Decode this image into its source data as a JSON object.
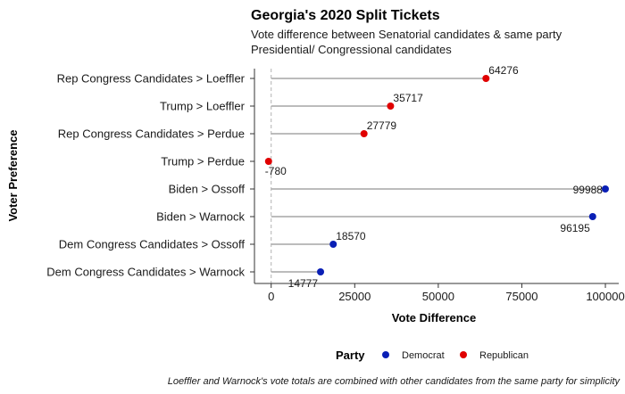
{
  "chart_data": {
    "type": "lollipop",
    "title": "Georgia's 2020 Split Tickets",
    "subtitle_lines": [
      "Vote difference between Senatorial candidates & same party",
      "Presidential/ Congressional candidates"
    ],
    "xlabel": "Vote Difference",
    "ylabel": "Voter Preference",
    "xlim": [
      -5000,
      104000
    ],
    "x_ticks": [
      0,
      25000,
      50000,
      75000,
      100000
    ],
    "x_tick_labels": [
      "0",
      "25000",
      "50000",
      "75000",
      "100000"
    ],
    "grid": false,
    "zero_reference_line": "dashed",
    "legend": {
      "title": "Party",
      "placement": "bottom",
      "items": [
        {
          "name": "Democrat",
          "color": "#0a1fb5"
        },
        {
          "name": "Republican",
          "color": "#e00000"
        }
      ]
    },
    "caption": "Loeffler and Warnock's vote totals are combined with other candidates from the same party for simplicity",
    "segment_color": "#a6a6a6",
    "rows": [
      {
        "label": "Rep Congress Candidates > Loeffler",
        "value": 64276,
        "party": "Republican",
        "value_label": "64276",
        "label_pos": "above"
      },
      {
        "label": "Trump > Loeffler",
        "value": 35717,
        "party": "Republican",
        "value_label": "35717",
        "label_pos": "above"
      },
      {
        "label": "Rep Congress Candidates > Perdue",
        "value": 27779,
        "party": "Republican",
        "value_label": "27779",
        "label_pos": "above"
      },
      {
        "label": "Trump > Perdue",
        "value": -780,
        "party": "Republican",
        "value_label": "-780",
        "label_pos": "below"
      },
      {
        "label": "Biden > Ossoff",
        "value": 99988,
        "party": "Democrat",
        "value_label": "99988",
        "label_pos": "left"
      },
      {
        "label": "Biden > Warnock",
        "value": 96195,
        "party": "Democrat",
        "value_label": "96195",
        "label_pos": "below"
      },
      {
        "label": "Dem Congress Candidates > Ossoff",
        "value": 18570,
        "party": "Democrat",
        "value_label": "18570",
        "label_pos": "above"
      },
      {
        "label": "Dem Congress Candidates > Warnock",
        "value": 14777,
        "party": "Democrat",
        "value_label": "14777",
        "label_pos": "below"
      }
    ]
  }
}
